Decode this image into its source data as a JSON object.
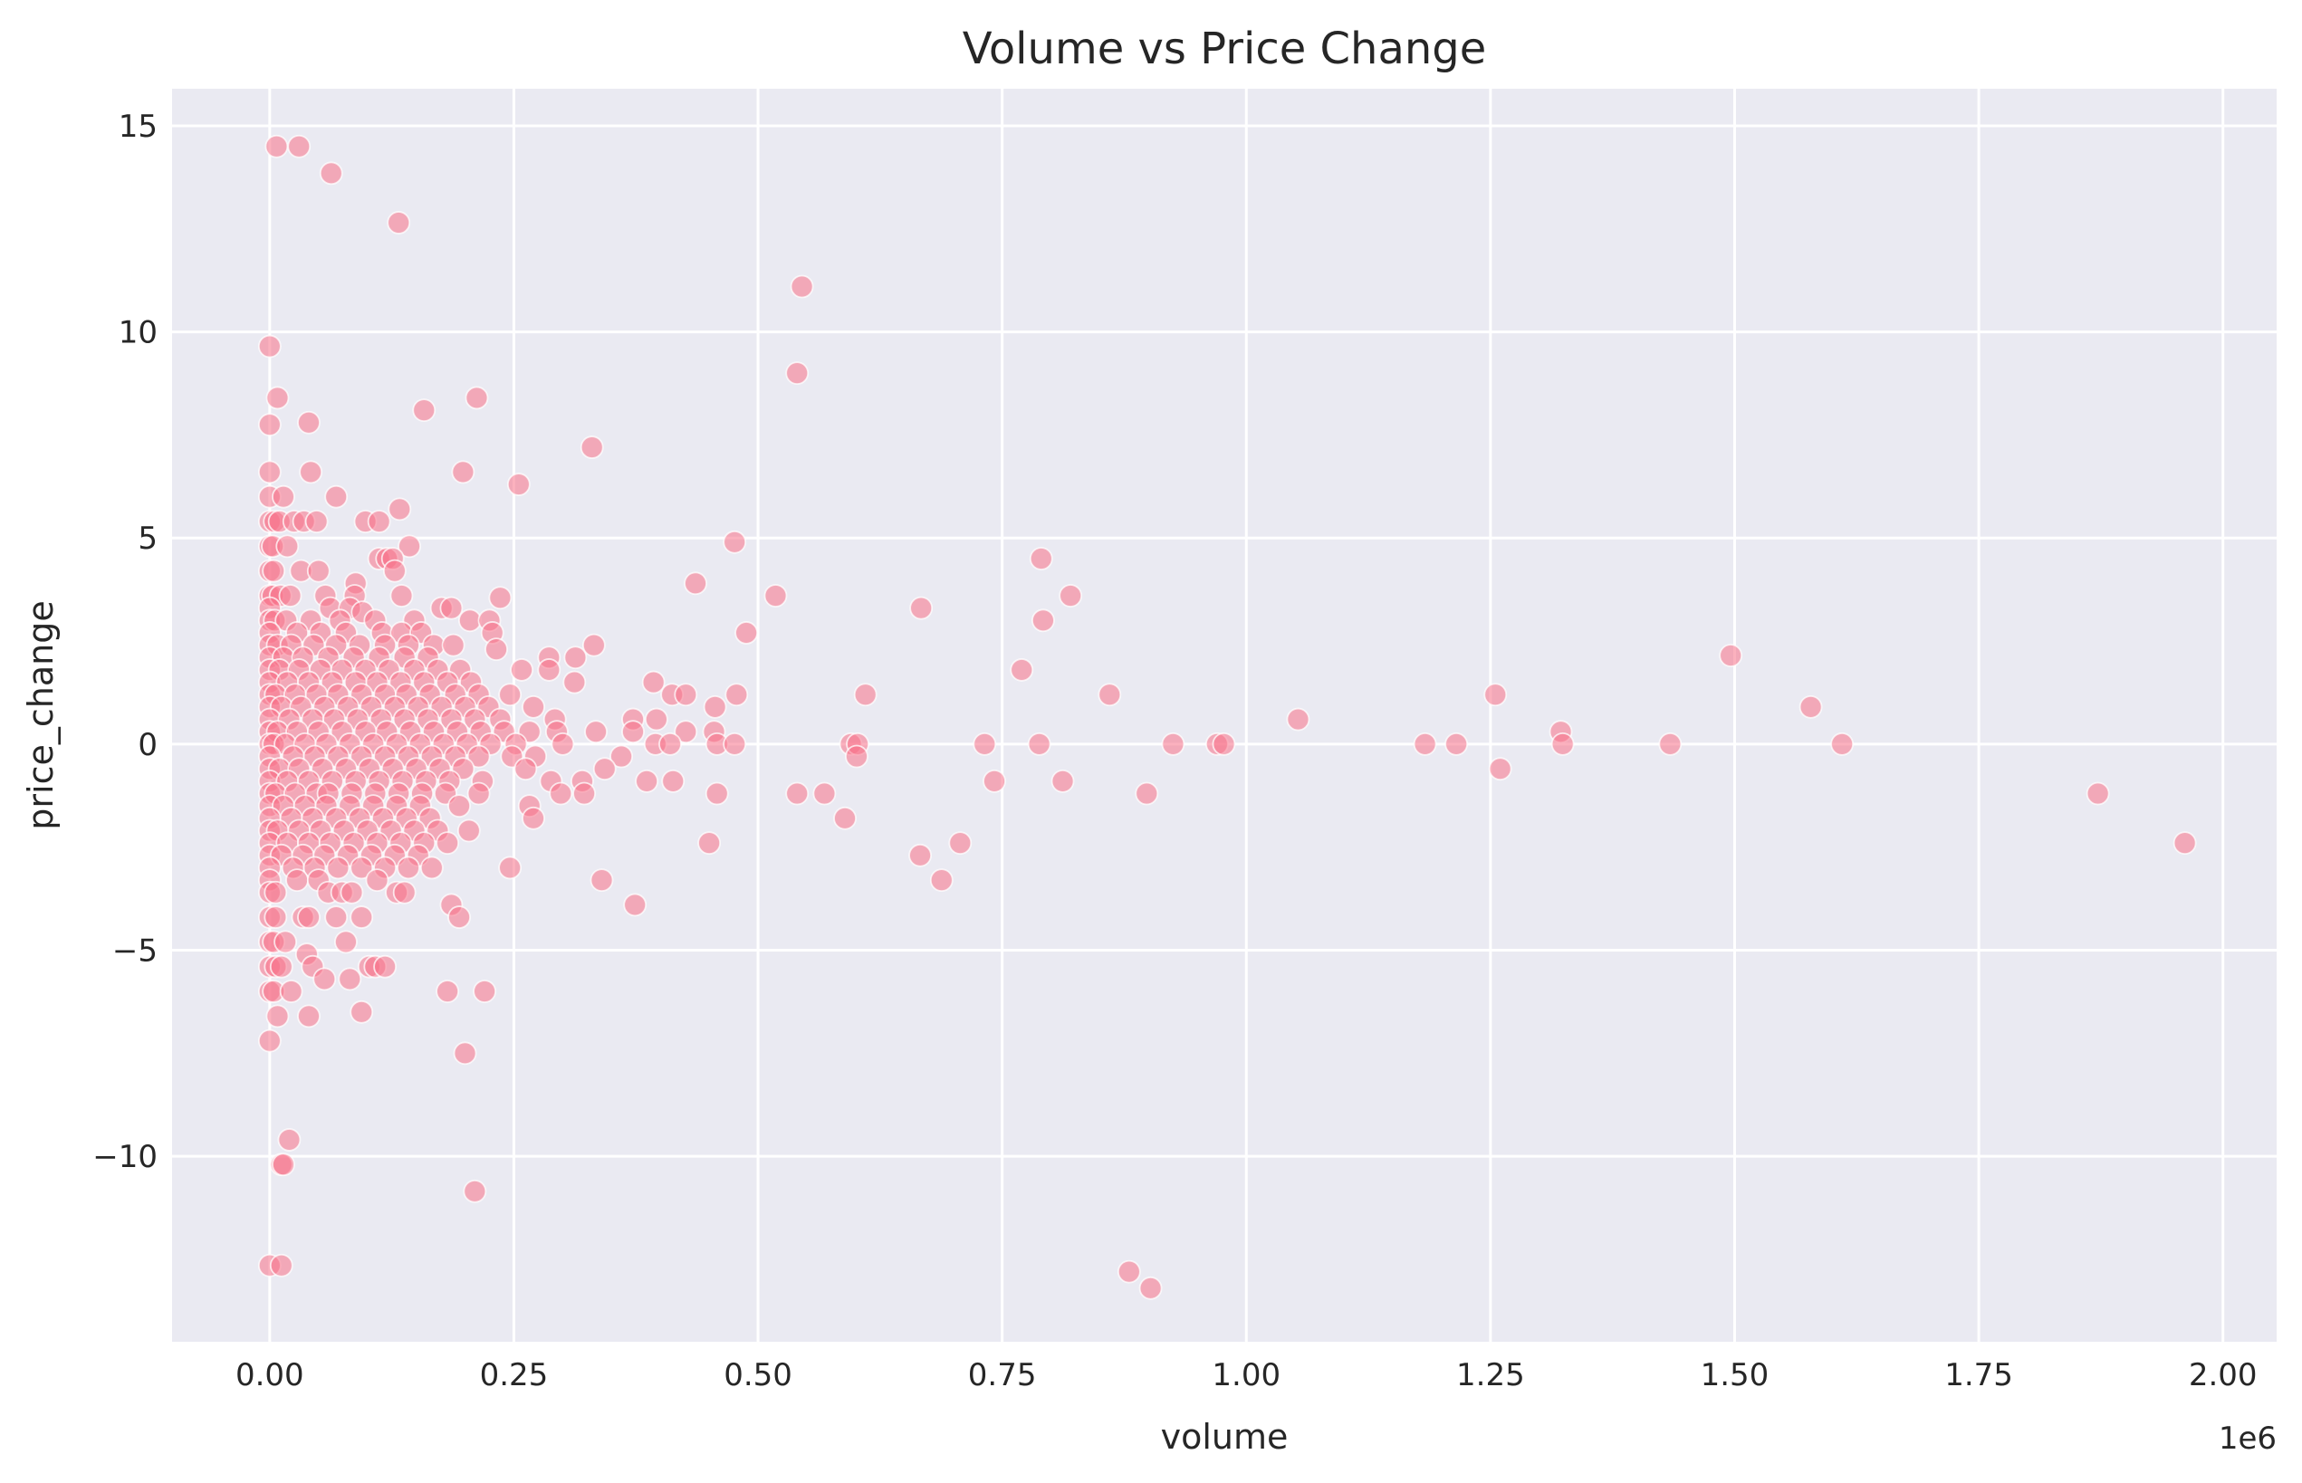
{
  "chart_data": {
    "type": "scatter",
    "title": "Volume vs Price Change",
    "xlabel": "volume",
    "ylabel": "price_change",
    "x_offset_label": "1e6",
    "xlim": [
      -0.1,
      2.055
    ],
    "ylim": [
      -14.5,
      15.9
    ],
    "xticks": [
      0.0,
      0.25,
      0.5,
      0.75,
      1.0,
      1.25,
      1.5,
      1.75,
      2.0
    ],
    "xtick_labels": [
      "0.00",
      "0.25",
      "0.50",
      "0.75",
      "1.00",
      "1.25",
      "1.50",
      "1.75",
      "2.00"
    ],
    "yticks": [
      -10,
      -5,
      0,
      5,
      10,
      15
    ],
    "ytick_labels": [
      "−10",
      "−5",
      "0",
      "5",
      "10",
      "15"
    ],
    "grid": true,
    "marker_color": "#f77189",
    "background_color": "#eaeaf2",
    "points": [
      [
        0.007,
        14.5
      ],
      [
        0.03,
        14.5
      ],
      [
        0.063,
        13.85
      ],
      [
        0.132,
        12.65
      ],
      [
        0.545,
        11.1
      ],
      [
        0.54,
        9.0
      ],
      [
        0.0,
        9.65
      ],
      [
        0.008,
        8.4
      ],
      [
        0.158,
        8.1
      ],
      [
        0.212,
        8.4
      ],
      [
        0.0,
        7.75
      ],
      [
        0.04,
        7.8
      ],
      [
        0.33,
        7.2
      ],
      [
        0.0,
        6.6
      ],
      [
        0.042,
        6.6
      ],
      [
        0.198,
        6.6
      ],
      [
        0.255,
        6.3
      ],
      [
        0.0,
        6.0
      ],
      [
        0.014,
        6.0
      ],
      [
        0.068,
        6.0
      ],
      [
        0.0,
        5.4
      ],
      [
        0.005,
        5.4
      ],
      [
        0.01,
        5.4
      ],
      [
        0.025,
        5.4
      ],
      [
        0.035,
        5.4
      ],
      [
        0.048,
        5.4
      ],
      [
        0.098,
        5.4
      ],
      [
        0.112,
        5.4
      ],
      [
        0.133,
        5.7
      ],
      [
        0.476,
        4.9
      ],
      [
        0.0,
        4.8
      ],
      [
        0.003,
        4.8
      ],
      [
        0.018,
        4.8
      ],
      [
        0.143,
        4.8
      ],
      [
        0.79,
        4.5
      ],
      [
        0.112,
        4.5
      ],
      [
        0.12,
        4.5
      ],
      [
        0.126,
        4.5
      ],
      [
        0.0,
        4.2
      ],
      [
        0.004,
        4.2
      ],
      [
        0.032,
        4.2
      ],
      [
        0.05,
        4.2
      ],
      [
        0.128,
        4.2
      ],
      [
        0.436,
        3.9
      ],
      [
        0.088,
        3.9
      ],
      [
        0.0,
        3.6
      ],
      [
        0.003,
        3.6
      ],
      [
        0.011,
        3.6
      ],
      [
        0.021,
        3.6
      ],
      [
        0.057,
        3.6
      ],
      [
        0.087,
        3.6
      ],
      [
        0.135,
        3.6
      ],
      [
        0.236,
        3.55
      ],
      [
        0.518,
        3.6
      ],
      [
        0.82,
        3.6
      ],
      [
        0.0,
        3.3
      ],
      [
        0.062,
        3.3
      ],
      [
        0.082,
        3.3
      ],
      [
        0.176,
        3.3
      ],
      [
        0.186,
        3.3
      ],
      [
        0.667,
        3.3
      ],
      [
        0.0,
        3.0
      ],
      [
        0.005,
        3.0
      ],
      [
        0.017,
        3.0
      ],
      [
        0.042,
        3.0
      ],
      [
        0.072,
        3.0
      ],
      [
        0.095,
        3.2
      ],
      [
        0.108,
        3.0
      ],
      [
        0.148,
        3.0
      ],
      [
        0.205,
        3.0
      ],
      [
        0.225,
        3.0
      ],
      [
        0.792,
        3.0
      ],
      [
        0.0,
        2.7
      ],
      [
        0.028,
        2.7
      ],
      [
        0.052,
        2.7
      ],
      [
        0.078,
        2.7
      ],
      [
        0.115,
        2.7
      ],
      [
        0.135,
        2.7
      ],
      [
        0.155,
        2.7
      ],
      [
        0.228,
        2.7
      ],
      [
        0.488,
        2.7
      ],
      [
        0.0,
        2.4
      ],
      [
        0.008,
        2.4
      ],
      [
        0.022,
        2.4
      ],
      [
        0.045,
        2.4
      ],
      [
        0.068,
        2.4
      ],
      [
        0.092,
        2.4
      ],
      [
        0.118,
        2.4
      ],
      [
        0.142,
        2.4
      ],
      [
        0.168,
        2.4
      ],
      [
        0.188,
        2.4
      ],
      [
        0.232,
        2.3
      ],
      [
        0.332,
        2.4
      ],
      [
        0.0,
        2.1
      ],
      [
        0.014,
        2.1
      ],
      [
        0.034,
        2.1
      ],
      [
        0.06,
        2.1
      ],
      [
        0.086,
        2.1
      ],
      [
        0.112,
        2.1
      ],
      [
        0.138,
        2.1
      ],
      [
        0.162,
        2.1
      ],
      [
        0.286,
        2.1
      ],
      [
        0.313,
        2.1
      ],
      [
        1.496,
        2.15
      ],
      [
        0.0,
        1.8
      ],
      [
        0.01,
        1.8
      ],
      [
        0.03,
        1.8
      ],
      [
        0.052,
        1.8
      ],
      [
        0.074,
        1.8
      ],
      [
        0.098,
        1.8
      ],
      [
        0.122,
        1.8
      ],
      [
        0.148,
        1.8
      ],
      [
        0.172,
        1.8
      ],
      [
        0.195,
        1.8
      ],
      [
        0.258,
        1.8
      ],
      [
        0.286,
        1.8
      ],
      [
        0.77,
        1.8
      ],
      [
        0.0,
        1.5
      ],
      [
        0.018,
        1.5
      ],
      [
        0.04,
        1.5
      ],
      [
        0.064,
        1.5
      ],
      [
        0.088,
        1.5
      ],
      [
        0.11,
        1.5
      ],
      [
        0.134,
        1.5
      ],
      [
        0.158,
        1.5
      ],
      [
        0.182,
        1.5
      ],
      [
        0.206,
        1.5
      ],
      [
        0.312,
        1.5
      ],
      [
        0.393,
        1.5
      ],
      [
        0.0,
        1.2
      ],
      [
        0.006,
        1.2
      ],
      [
        0.026,
        1.2
      ],
      [
        0.048,
        1.2
      ],
      [
        0.07,
        1.2
      ],
      [
        0.094,
        1.2
      ],
      [
        0.118,
        1.2
      ],
      [
        0.14,
        1.2
      ],
      [
        0.164,
        1.2
      ],
      [
        0.19,
        1.2
      ],
      [
        0.214,
        1.2
      ],
      [
        0.246,
        1.2
      ],
      [
        0.412,
        1.2
      ],
      [
        0.426,
        1.2
      ],
      [
        0.478,
        1.2
      ],
      [
        0.61,
        1.2
      ],
      [
        0.86,
        1.2
      ],
      [
        1.255,
        1.2
      ],
      [
        0.0,
        0.9
      ],
      [
        0.012,
        0.9
      ],
      [
        0.032,
        0.9
      ],
      [
        0.056,
        0.9
      ],
      [
        0.08,
        0.9
      ],
      [
        0.104,
        0.9
      ],
      [
        0.128,
        0.9
      ],
      [
        0.152,
        0.9
      ],
      [
        0.176,
        0.9
      ],
      [
        0.2,
        0.9
      ],
      [
        0.224,
        0.9
      ],
      [
        0.27,
        0.9
      ],
      [
        0.456,
        0.9
      ],
      [
        1.578,
        0.9
      ],
      [
        0.0,
        0.6
      ],
      [
        0.02,
        0.6
      ],
      [
        0.044,
        0.6
      ],
      [
        0.066,
        0.6
      ],
      [
        0.09,
        0.6
      ],
      [
        0.114,
        0.6
      ],
      [
        0.138,
        0.6
      ],
      [
        0.162,
        0.6
      ],
      [
        0.186,
        0.6
      ],
      [
        0.21,
        0.6
      ],
      [
        0.236,
        0.6
      ],
      [
        0.292,
        0.6
      ],
      [
        0.372,
        0.6
      ],
      [
        0.396,
        0.6
      ],
      [
        1.053,
        0.6
      ],
      [
        0.0,
        0.3
      ],
      [
        0.008,
        0.3
      ],
      [
        0.028,
        0.3
      ],
      [
        0.05,
        0.3
      ],
      [
        0.074,
        0.3
      ],
      [
        0.098,
        0.3
      ],
      [
        0.12,
        0.3
      ],
      [
        0.144,
        0.3
      ],
      [
        0.168,
        0.3
      ],
      [
        0.192,
        0.3
      ],
      [
        0.216,
        0.3
      ],
      [
        0.24,
        0.3
      ],
      [
        0.266,
        0.3
      ],
      [
        0.294,
        0.3
      ],
      [
        0.334,
        0.3
      ],
      [
        0.372,
        0.3
      ],
      [
        0.426,
        0.3
      ],
      [
        0.455,
        0.3
      ],
      [
        1.322,
        0.3
      ],
      [
        0.0,
        0.0
      ],
      [
        0.004,
        0.0
      ],
      [
        0.016,
        0.0
      ],
      [
        0.036,
        0.0
      ],
      [
        0.058,
        0.0
      ],
      [
        0.082,
        0.0
      ],
      [
        0.106,
        0.0
      ],
      [
        0.13,
        0.0
      ],
      [
        0.154,
        0.0
      ],
      [
        0.178,
        0.0
      ],
      [
        0.202,
        0.0
      ],
      [
        0.226,
        0.0
      ],
      [
        0.252,
        0.0
      ],
      [
        0.3,
        0.0
      ],
      [
        0.395,
        0.0
      ],
      [
        0.41,
        0.0
      ],
      [
        0.458,
        0.0
      ],
      [
        0.476,
        0.0
      ],
      [
        0.595,
        0.0
      ],
      [
        0.602,
        0.0
      ],
      [
        0.732,
        0.0
      ],
      [
        0.788,
        0.0
      ],
      [
        0.925,
        0.0
      ],
      [
        0.97,
        0.0
      ],
      [
        0.977,
        0.0
      ],
      [
        1.183,
        0.0
      ],
      [
        1.215,
        0.0
      ],
      [
        1.324,
        0.0
      ],
      [
        1.434,
        0.0
      ],
      [
        1.61,
        0.0
      ],
      [
        0.601,
        -0.3
      ],
      [
        0.0,
        -0.3
      ],
      [
        0.024,
        -0.3
      ],
      [
        0.046,
        -0.3
      ],
      [
        0.07,
        -0.3
      ],
      [
        0.094,
        -0.3
      ],
      [
        0.118,
        -0.3
      ],
      [
        0.142,
        -0.3
      ],
      [
        0.166,
        -0.3
      ],
      [
        0.19,
        -0.3
      ],
      [
        0.214,
        -0.3
      ],
      [
        0.248,
        -0.3
      ],
      [
        0.272,
        -0.3
      ],
      [
        0.36,
        -0.3
      ],
      [
        0.0,
        -0.6
      ],
      [
        0.01,
        -0.6
      ],
      [
        0.03,
        -0.6
      ],
      [
        0.054,
        -0.6
      ],
      [
        0.078,
        -0.6
      ],
      [
        0.102,
        -0.6
      ],
      [
        0.126,
        -0.6
      ],
      [
        0.15,
        -0.6
      ],
      [
        0.174,
        -0.6
      ],
      [
        0.198,
        -0.6
      ],
      [
        0.262,
        -0.6
      ],
      [
        0.343,
        -0.6
      ],
      [
        1.26,
        -0.6
      ],
      [
        0.0,
        -0.9
      ],
      [
        0.018,
        -0.9
      ],
      [
        0.04,
        -0.9
      ],
      [
        0.064,
        -0.9
      ],
      [
        0.088,
        -0.9
      ],
      [
        0.112,
        -0.9
      ],
      [
        0.136,
        -0.9
      ],
      [
        0.16,
        -0.9
      ],
      [
        0.184,
        -0.9
      ],
      [
        0.218,
        -0.9
      ],
      [
        0.288,
        -0.9
      ],
      [
        0.32,
        -0.9
      ],
      [
        0.386,
        -0.9
      ],
      [
        0.413,
        -0.9
      ],
      [
        0.742,
        -0.9
      ],
      [
        0.812,
        -0.9
      ],
      [
        0.0,
        -1.2
      ],
      [
        0.006,
        -1.2
      ],
      [
        0.026,
        -1.2
      ],
      [
        0.048,
        -1.2
      ],
      [
        0.06,
        -1.2
      ],
      [
        0.084,
        -1.2
      ],
      [
        0.108,
        -1.2
      ],
      [
        0.132,
        -1.2
      ],
      [
        0.156,
        -1.2
      ],
      [
        0.18,
        -1.2
      ],
      [
        0.214,
        -1.2
      ],
      [
        0.298,
        -1.2
      ],
      [
        0.322,
        -1.2
      ],
      [
        0.458,
        -1.2
      ],
      [
        0.54,
        -1.2
      ],
      [
        0.568,
        -1.2
      ],
      [
        0.898,
        -1.2
      ],
      [
        1.872,
        -1.2
      ],
      [
        0.0,
        -1.5
      ],
      [
        0.014,
        -1.5
      ],
      [
        0.036,
        -1.5
      ],
      [
        0.058,
        -1.5
      ],
      [
        0.082,
        -1.5
      ],
      [
        0.106,
        -1.5
      ],
      [
        0.13,
        -1.5
      ],
      [
        0.154,
        -1.5
      ],
      [
        0.194,
        -1.5
      ],
      [
        0.266,
        -1.5
      ],
      [
        0.0,
        -1.8
      ],
      [
        0.022,
        -1.8
      ],
      [
        0.044,
        -1.8
      ],
      [
        0.068,
        -1.8
      ],
      [
        0.092,
        -1.8
      ],
      [
        0.116,
        -1.8
      ],
      [
        0.14,
        -1.8
      ],
      [
        0.164,
        -1.8
      ],
      [
        0.27,
        -1.8
      ],
      [
        0.589,
        -1.8
      ],
      [
        0.0,
        -2.1
      ],
      [
        0.008,
        -2.1
      ],
      [
        0.03,
        -2.1
      ],
      [
        0.052,
        -2.1
      ],
      [
        0.076,
        -2.1
      ],
      [
        0.1,
        -2.1
      ],
      [
        0.124,
        -2.1
      ],
      [
        0.148,
        -2.1
      ],
      [
        0.172,
        -2.1
      ],
      [
        0.204,
        -2.1
      ],
      [
        0.0,
        -2.4
      ],
      [
        0.018,
        -2.4
      ],
      [
        0.04,
        -2.4
      ],
      [
        0.062,
        -2.4
      ],
      [
        0.086,
        -2.4
      ],
      [
        0.11,
        -2.4
      ],
      [
        0.134,
        -2.4
      ],
      [
        0.158,
        -2.4
      ],
      [
        0.182,
        -2.4
      ],
      [
        0.45,
        -2.4
      ],
      [
        0.707,
        -2.4
      ],
      [
        1.961,
        -2.4
      ],
      [
        0.0,
        -2.7
      ],
      [
        0.012,
        -2.7
      ],
      [
        0.034,
        -2.7
      ],
      [
        0.056,
        -2.7
      ],
      [
        0.08,
        -2.7
      ],
      [
        0.104,
        -2.7
      ],
      [
        0.128,
        -2.7
      ],
      [
        0.152,
        -2.7
      ],
      [
        0.666,
        -2.7
      ],
      [
        0.0,
        -3.0
      ],
      [
        0.024,
        -3.0
      ],
      [
        0.046,
        -3.0
      ],
      [
        0.07,
        -3.0
      ],
      [
        0.094,
        -3.0
      ],
      [
        0.118,
        -3.0
      ],
      [
        0.142,
        -3.0
      ],
      [
        0.166,
        -3.0
      ],
      [
        0.246,
        -3.0
      ],
      [
        0.0,
        -3.3
      ],
      [
        0.028,
        -3.3
      ],
      [
        0.05,
        -3.3
      ],
      [
        0.11,
        -3.3
      ],
      [
        0.34,
        -3.3
      ],
      [
        0.688,
        -3.3
      ],
      [
        0.0,
        -3.6
      ],
      [
        0.006,
        -3.6
      ],
      [
        0.06,
        -3.6
      ],
      [
        0.074,
        -3.6
      ],
      [
        0.084,
        -3.6
      ],
      [
        0.13,
        -3.6
      ],
      [
        0.138,
        -3.6
      ],
      [
        0.186,
        -3.9
      ],
      [
        0.374,
        -3.9
      ],
      [
        0.0,
        -4.2
      ],
      [
        0.006,
        -4.2
      ],
      [
        0.034,
        -4.2
      ],
      [
        0.04,
        -4.2
      ],
      [
        0.068,
        -4.2
      ],
      [
        0.094,
        -4.2
      ],
      [
        0.194,
        -4.2
      ],
      [
        0.0,
        -4.8
      ],
      [
        0.004,
        -4.8
      ],
      [
        0.016,
        -4.8
      ],
      [
        0.078,
        -4.8
      ],
      [
        0.038,
        -5.1
      ],
      [
        0.0,
        -5.4
      ],
      [
        0.006,
        -5.4
      ],
      [
        0.012,
        -5.4
      ],
      [
        0.044,
        -5.4
      ],
      [
        0.102,
        -5.4
      ],
      [
        0.108,
        -5.4
      ],
      [
        0.118,
        -5.4
      ],
      [
        0.056,
        -5.7
      ],
      [
        0.082,
        -5.7
      ],
      [
        0.0,
        -6.0
      ],
      [
        0.004,
        -6.0
      ],
      [
        0.022,
        -6.0
      ],
      [
        0.182,
        -6.0
      ],
      [
        0.22,
        -6.0
      ],
      [
        0.008,
        -6.6
      ],
      [
        0.04,
        -6.6
      ],
      [
        0.094,
        -6.5
      ],
      [
        0.0,
        -7.2
      ],
      [
        0.2,
        -7.5
      ],
      [
        0.02,
        -9.6
      ],
      [
        0.012,
        -10.2
      ],
      [
        0.014,
        -10.2
      ],
      [
        0.21,
        -10.85
      ],
      [
        0.0,
        -12.65
      ],
      [
        0.012,
        -12.65
      ],
      [
        0.88,
        -12.8
      ],
      [
        0.902,
        -13.2
      ]
    ]
  }
}
